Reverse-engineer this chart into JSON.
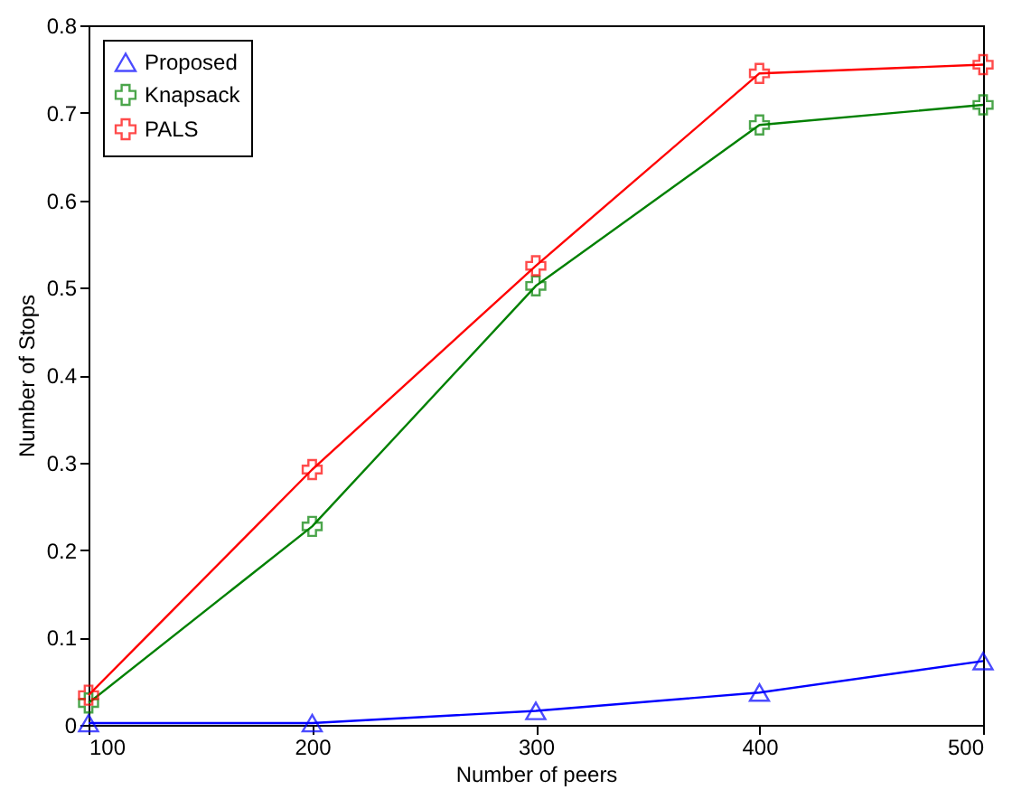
{
  "chart_data": {
    "type": "line",
    "xlabel": "Number of peers",
    "ylabel": "Number of Stops",
    "x": [
      100,
      200,
      300,
      400,
      500
    ],
    "series": [
      {
        "name": "Proposed",
        "color": "#0000ff",
        "marker": "triangle",
        "values": [
          0.002,
          0.002,
          0.016,
          0.037,
          0.073
        ]
      },
      {
        "name": "Knapsack",
        "color": "#008000",
        "marker": "cross",
        "values": [
          0.025,
          0.227,
          0.502,
          0.686,
          0.709
        ]
      },
      {
        "name": "PALS",
        "color": "#ff0000",
        "marker": "cross",
        "values": [
          0.034,
          0.292,
          0.525,
          0.745,
          0.755
        ]
      }
    ],
    "xlim": [
      100,
      500
    ],
    "xticks": [
      100,
      200,
      300,
      400,
      500
    ],
    "ylim": [
      0,
      0.8
    ],
    "yticks": [
      0,
      0.1,
      0.2,
      0.3,
      0.4,
      0.5,
      0.6,
      0.7,
      0.8
    ],
    "grid": false,
    "legend": "top left",
    "line_style": "solid"
  }
}
